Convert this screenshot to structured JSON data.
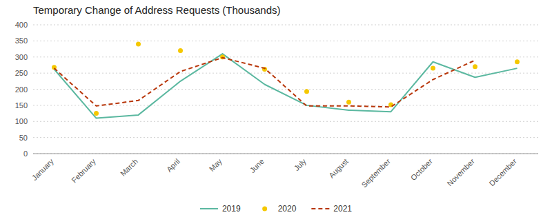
{
  "chart_data": {
    "type": "line",
    "title": "Temporary Change of Address Requests (Thousands)",
    "categories": [
      "January",
      "February",
      "March",
      "April",
      "May",
      "June",
      "July",
      "August",
      "September",
      "October",
      "November",
      "December"
    ],
    "series": [
      {
        "name": "2019",
        "color": "#5BB8A0",
        "line_style": "solid",
        "values": [
          262,
          110,
          120,
          225,
          310,
          215,
          150,
          135,
          130,
          285,
          237,
          265
        ]
      },
      {
        "name": "2020",
        "color": "#F5C800",
        "line_style": "none",
        "marker": "circle",
        "values": [
          268,
          125,
          340,
          320,
          300,
          262,
          193,
          160,
          152,
          265,
          270,
          285
        ]
      },
      {
        "name": "2021",
        "color": "#B8360A",
        "line_style": "dashed",
        "values": [
          265,
          148,
          165,
          255,
          298,
          265,
          148,
          148,
          145,
          230,
          290,
          null
        ]
      }
    ],
    "ylim": [
      0,
      400
    ],
    "yticks": [
      0,
      50,
      100,
      150,
      200,
      250,
      300,
      350,
      400
    ],
    "grid": true,
    "legend": "bottom"
  }
}
